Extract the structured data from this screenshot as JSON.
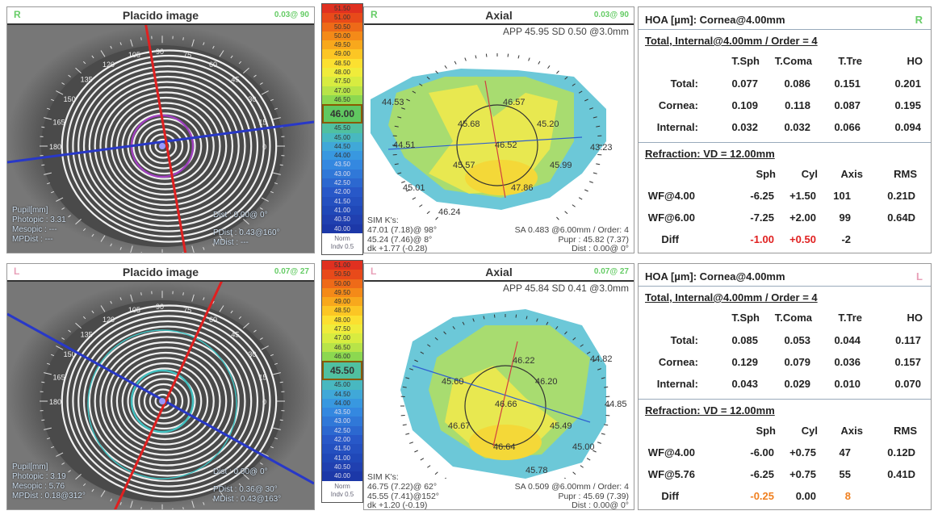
{
  "eyes": [
    {
      "side": "R",
      "placido": {
        "title": "Placido image",
        "quality": "0.03@ 90",
        "angles": [
          "105",
          "90",
          "75",
          "60",
          "45",
          "30",
          "15",
          "0",
          "120",
          "135",
          "150",
          "165",
          "180"
        ],
        "pupil_label": "Pupil[mm]",
        "photopic": "Photopic : 3.31",
        "mesopic": "Mesopic : ---",
        "mpdist": "MPDist : ---",
        "dist": "Dist : 0.00@ 0°",
        "pdist": "PDist : 0.43@160°",
        "mdist": "MDist : ---"
      },
      "scale": {
        "values": [
          "51.50",
          "51.00",
          "50.50",
          "50.00",
          "49.50",
          "49.00",
          "48.50",
          "48.00",
          "47.50",
          "47.00",
          "46.50",
          "46.00",
          "45.50",
          "45.00",
          "44.50",
          "44.00",
          "43.50",
          "43.00",
          "42.50",
          "42.00",
          "41.50",
          "41.00",
          "40.50",
          "40.00"
        ],
        "highlight": "46.00",
        "norm": "Norm",
        "indv": "Indv 0.5"
      },
      "axial": {
        "title": "Axial",
        "quality": "0.03@ 90",
        "app": "APP 45.95  SD 0.50  @3.0mm",
        "values": [
          "46.57",
          "44.53",
          "45.68",
          "45.20",
          "44.51",
          "46.52",
          "43.23",
          "45.57",
          "45.99",
          "45.01",
          "47.86",
          "46.24"
        ],
        "simk_label": "SIM K's:",
        "k1": "47.01 (7.18)@ 98°",
        "k2": "45.24 (7.46)@  8°",
        "dk": "dk +1.77 (-0.28)",
        "sa": "SA  0.483 @6.00mm / Order: 4",
        "pupr": "Pupr :  45.82 (7.37)",
        "dist": "Dist :  0.00@  0°"
      },
      "hoa": {
        "title": "HOA [µm]: Cornea@4.00mm",
        "subtitle": "Total, Internal@4.00mm / Order = 4",
        "headers": [
          "T.Sph",
          "T.Coma",
          "T.Tre",
          "HO"
        ],
        "rows": [
          {
            "label": "Total:",
            "values": [
              "0.077",
              "0.086",
              "0.151",
              "0.201"
            ]
          },
          {
            "label": "Cornea:",
            "values": [
              "0.109",
              "0.118",
              "0.087",
              "0.195"
            ]
          },
          {
            "label": "Internal:",
            "values": [
              "0.032",
              "0.032",
              "0.066",
              "0.094"
            ]
          }
        ]
      },
      "refraction": {
        "title": "Refraction: VD = 12.00mm",
        "headers": [
          "Sph",
          "Cyl",
          "Axis",
          "RMS"
        ],
        "rows": [
          {
            "label": "WF@4.00",
            "values": [
              "-6.25",
              "+1.50",
              "101",
              "0.21D"
            ]
          },
          {
            "label": "WF@6.00",
            "values": [
              "-7.25",
              "+2.00",
              "99",
              "0.64D"
            ]
          },
          {
            "label": "Diff",
            "values": [
              "-1.00",
              "+0.50",
              "-2",
              ""
            ]
          }
        ],
        "diff_colors": [
          "#e02020",
          "#e02020",
          "#222",
          ""
        ]
      }
    },
    {
      "side": "L",
      "placido": {
        "title": "Placido image",
        "quality": "0.07@ 27",
        "angles": [
          "105",
          "90",
          "75",
          "60",
          "45",
          "30",
          "15",
          "0",
          "120",
          "135",
          "150",
          "165",
          "180"
        ],
        "pupil_label": "Pupil[mm]",
        "photopic": "Photopic : 3.19",
        "mesopic": "Mesopic : 5.76",
        "mpdist": "MPDist : 0.18@312°",
        "dist": "Dist : 0.00@ 0°",
        "pdist": "PDist : 0.36@ 30°",
        "mdist": "MDist : 0.43@163°"
      },
      "scale": {
        "values": [
          "51.00",
          "50.50",
          "50.00",
          "49.50",
          "49.00",
          "48.50",
          "48.00",
          "47.50",
          "47.00",
          "46.50",
          "46.00",
          "45.50",
          "45.00",
          "44.50",
          "44.00",
          "43.50",
          "43.00",
          "42.50",
          "42.00",
          "41.50",
          "41.00",
          "40.50",
          "40.00"
        ],
        "highlight": "45.50",
        "norm": "Norm",
        "indv": "Indv 0.5"
      },
      "axial": {
        "title": "Axial",
        "quality": "0.07@ 27",
        "app": "APP 45.84  SD 0.41  @3.0mm",
        "values": [
          "46.22",
          "44.82",
          "45.60",
          "46.20",
          "46.66",
          "44.85",
          "46.67",
          "45.49",
          "46.64",
          "45.00",
          "45.78"
        ],
        "simk_label": "SIM K's:",
        "k1": "46.75 (7.22)@ 62°",
        "k2": "45.55 (7.41)@152°",
        "dk": "dk +1.20 (-0.19)",
        "sa": "SA  0.509 @6.00mm / Order: 4",
        "pupr": "Pupr :  45.69 (7.39)",
        "dist": "Dist :  0.00@  0°"
      },
      "hoa": {
        "title": "HOA [µm]: Cornea@4.00mm",
        "subtitle": "Total, Internal@4.00mm / Order = 4",
        "headers": [
          "T.Sph",
          "T.Coma",
          "T.Tre",
          "HO"
        ],
        "rows": [
          {
            "label": "Total:",
            "values": [
              "0.085",
              "0.053",
              "0.044",
              "0.117"
            ]
          },
          {
            "label": "Cornea:",
            "values": [
              "0.129",
              "0.079",
              "0.036",
              "0.157"
            ]
          },
          {
            "label": "Internal:",
            "values": [
              "0.043",
              "0.029",
              "0.010",
              "0.070"
            ]
          }
        ]
      },
      "refraction": {
        "title": "Refraction: VD = 12.00mm",
        "headers": [
          "Sph",
          "Cyl",
          "Axis",
          "RMS"
        ],
        "rows": [
          {
            "label": "WF@4.00",
            "values": [
              "-6.00",
              "+0.75",
              "47",
              "0.12D"
            ]
          },
          {
            "label": "WF@5.76",
            "values": [
              "-6.25",
              "+0.75",
              "55",
              "0.41D"
            ]
          },
          {
            "label": "Diff",
            "values": [
              "-0.25",
              "0.00",
              "8",
              ""
            ]
          }
        ],
        "diff_colors": [
          "#f08020",
          "#222",
          "#f08020",
          ""
        ]
      }
    }
  ]
}
